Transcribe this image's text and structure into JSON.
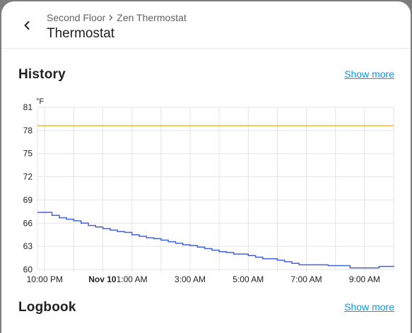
{
  "header": {
    "breadcrumb_area": "Second Floor",
    "breadcrumb_device": "Zen Thermostat",
    "title": "Thermostat",
    "back_icon": "chevron-left-icon",
    "separator_icon": "chevron-right-icon"
  },
  "history": {
    "title": "History",
    "show_more": "Show more"
  },
  "logbook": {
    "title": "Logbook",
    "show_more": "Show more"
  },
  "colors": {
    "setpoint_series": "#e6b84a",
    "current_series": "#4462d8",
    "link": "#039be5"
  },
  "chart_data": {
    "type": "line",
    "unit_label": "°F",
    "ylim": [
      60,
      81
    ],
    "yticks": [
      60,
      63,
      66,
      69,
      72,
      75,
      78,
      81
    ],
    "x_range_hours": [
      -2.25,
      10.0
    ],
    "xticks": [
      {
        "label": "10:00 PM",
        "h": -2,
        "bold": false
      },
      {
        "label": "Nov 10",
        "h": 0,
        "bold": true
      },
      {
        "label": "1:00 AM",
        "h": 1,
        "bold": false
      },
      {
        "label": "3:00 AM",
        "h": 3,
        "bold": false
      },
      {
        "label": "5:00 AM",
        "h": 5,
        "bold": false
      },
      {
        "label": "7:00 AM",
        "h": 7,
        "bold": false
      },
      {
        "label": "9:00 AM",
        "h": 9,
        "bold": false
      }
    ],
    "grid": true,
    "series": [
      {
        "key": "setpoint",
        "step": false,
        "x": [
          -2.25,
          10.0
        ],
        "y": [
          78.6,
          78.6
        ]
      },
      {
        "key": "current",
        "step": true,
        "x": [
          -2.25,
          -1.75,
          -1.5,
          -1.25,
          -1.0,
          -0.75,
          -0.5,
          -0.25,
          0.0,
          0.25,
          0.5,
          0.75,
          1.0,
          1.25,
          1.5,
          1.75,
          2.0,
          2.25,
          2.5,
          2.75,
          3.0,
          3.25,
          3.5,
          3.75,
          4.0,
          4.25,
          4.5,
          5.0,
          5.25,
          5.5,
          6.0,
          6.25,
          6.5,
          6.75,
          7.25,
          7.75,
          8.5,
          9.5,
          10.0
        ],
        "y": [
          67.4,
          67.0,
          66.7,
          66.5,
          66.3,
          66.0,
          65.7,
          65.5,
          65.3,
          65.1,
          64.9,
          64.8,
          64.5,
          64.3,
          64.1,
          64.0,
          63.8,
          63.6,
          63.4,
          63.2,
          63.1,
          62.9,
          62.7,
          62.5,
          62.3,
          62.2,
          62.0,
          61.8,
          61.6,
          61.4,
          61.2,
          61.0,
          60.8,
          60.6,
          60.6,
          60.5,
          60.2,
          60.4,
          60.5
        ]
      }
    ]
  }
}
